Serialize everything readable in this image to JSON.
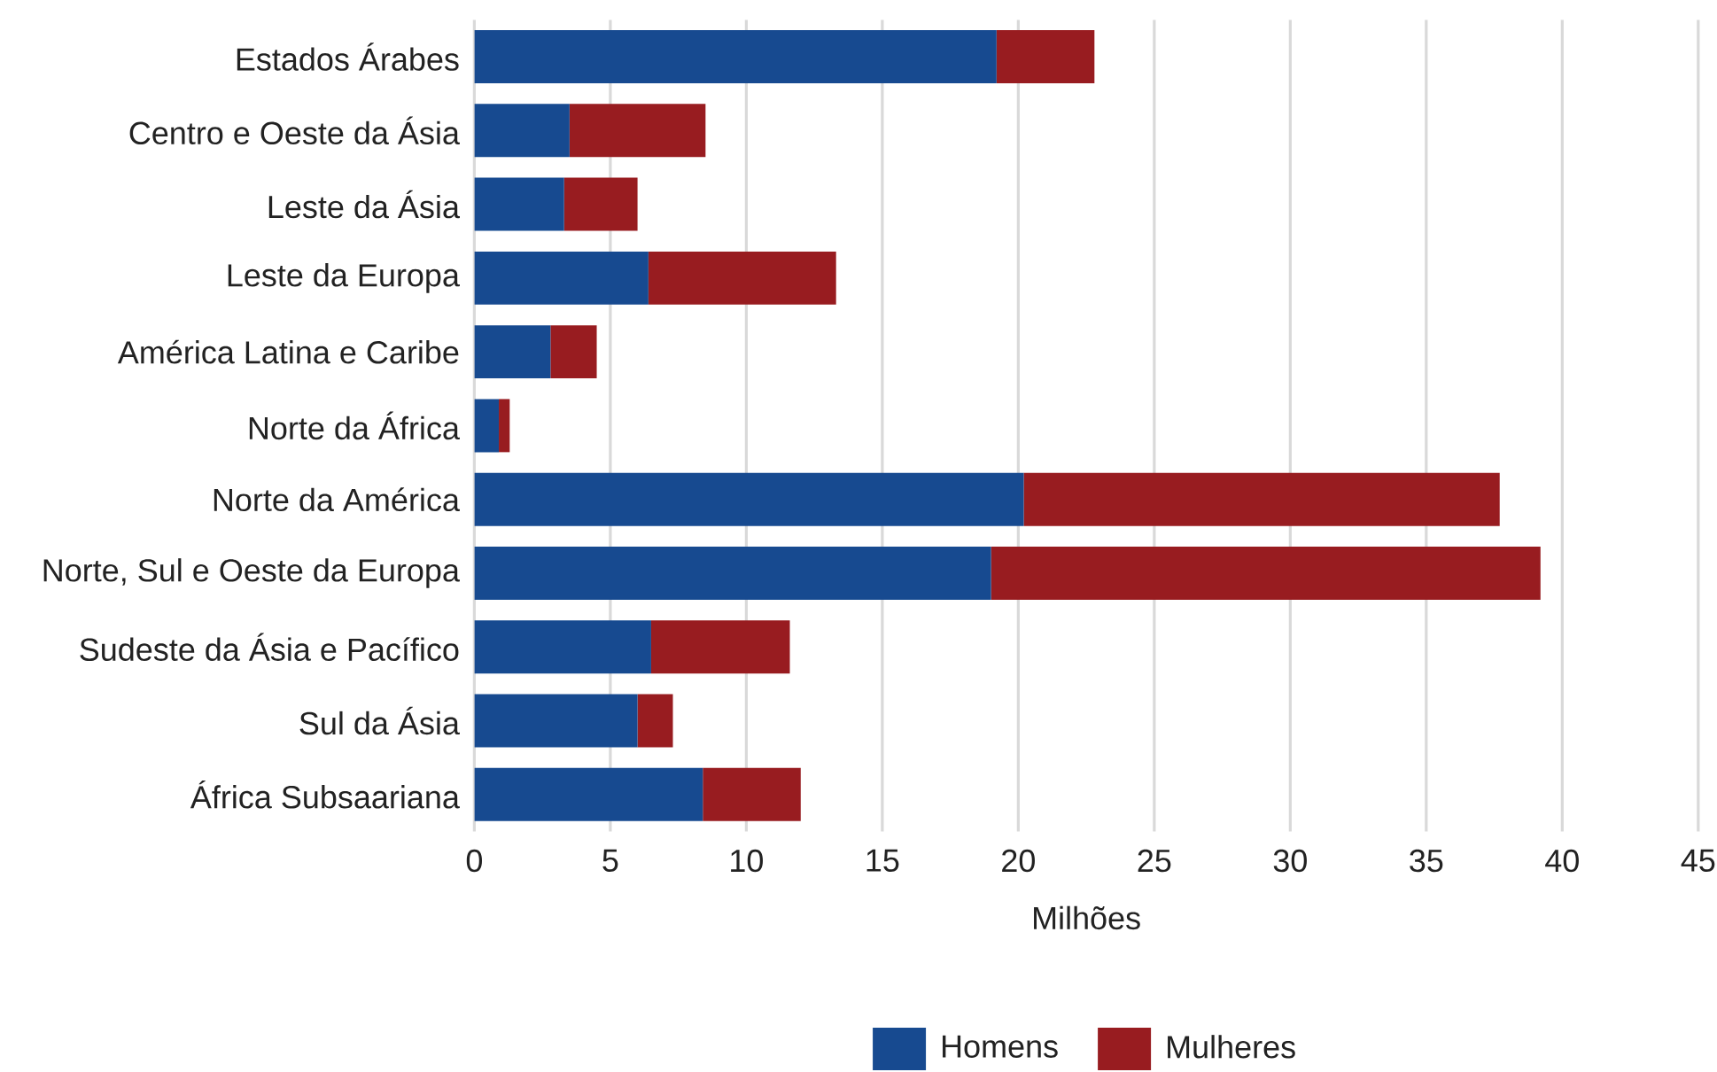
{
  "chart_data": {
    "type": "bar",
    "orientation": "horizontal",
    "stacked": true,
    "categories": [
      "Estados Árabes",
      "Centro e Oeste da Ásia",
      "Leste da Ásia",
      "Leste da Europa",
      "América Latina e Caribe",
      "Norte da África",
      "Norte da América",
      "Norte, Sul e Oeste da Europa",
      "Sudeste da Ásia e Pacífico",
      "Sul da Ásia",
      "África Subsaariana"
    ],
    "series": [
      {
        "name": "Homens",
        "color": "#174a90",
        "values": [
          19.2,
          3.5,
          3.3,
          6.4,
          2.8,
          0.9,
          20.2,
          19.0,
          6.5,
          6.0,
          8.4
        ]
      },
      {
        "name": "Mulheres",
        "color": "#981c20",
        "values": [
          3.6,
          5.0,
          2.7,
          6.9,
          1.7,
          0.4,
          17.5,
          20.2,
          5.1,
          1.3,
          3.6
        ]
      }
    ],
    "xlabel": "Milhões",
    "xlim": [
      0,
      45
    ],
    "xticks": [
      0,
      5,
      10,
      15,
      20,
      25,
      30,
      35,
      40,
      45
    ],
    "grid": "x",
    "legend": "bottom"
  }
}
